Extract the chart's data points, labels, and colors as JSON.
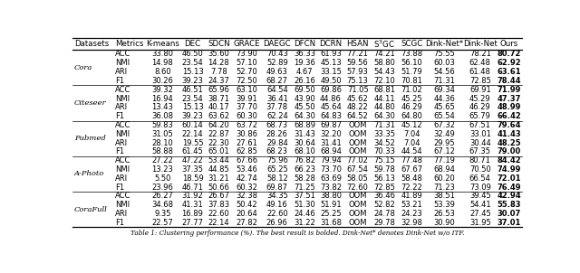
{
  "caption": "Table 1: Clustering performance (%). The best result is bolded. Dink-Net* denotes Dink-Net w/o ITF.",
  "datasets": [
    "Cora",
    "Citeseer",
    "Pubmed",
    "A-Photo",
    "CoraFull"
  ],
  "metrics": [
    "ACC",
    "NMI",
    "ARI",
    "F1"
  ],
  "col_methods": [
    "K-means",
    "DEC",
    "SDCN",
    "GRACE",
    "DAEGC",
    "DFCN",
    "DCRN",
    "HSAN",
    "S$^3$GC",
    "SCGC",
    "Dink-Net*",
    "Dink-Net",
    "Ours"
  ],
  "data": {
    "Cora": {
      "ACC": [
        "33.80",
        "46.50",
        "35.60",
        "73.90",
        "70.43",
        "36.33",
        "61.93",
        "77.21",
        "74.21",
        "73.88",
        "75.55",
        "78.21",
        "80.72"
      ],
      "NMI": [
        "14.98",
        "23.54",
        "14.28",
        "57.10",
        "52.89",
        "19.36",
        "45.13",
        "59.56",
        "58.80",
        "56.10",
        "60.03",
        "62.48",
        "62.92"
      ],
      "ARI": [
        "8.60",
        "15.13",
        "7.78",
        "52.70",
        "49.63",
        "4.67",
        "33.15",
        "57.93",
        "54.43",
        "51.79",
        "54.56",
        "61.48",
        "63.61"
      ],
      "F1": [
        "30.26",
        "39.23",
        "24.37",
        "72.50",
        "68.27",
        "26.16",
        "49.50",
        "75.13",
        "72.10",
        "70.81",
        "71.31",
        "72.85",
        "78.44"
      ]
    },
    "Citeseer": {
      "ACC": [
        "39.32",
        "46.51",
        "65.96",
        "63.10",
        "64.54",
        "69.50",
        "69.86",
        "71.05",
        "68.81",
        "71.02",
        "69.34",
        "69.91",
        "71.99"
      ],
      "NMI": [
        "16.94",
        "23.54",
        "38.71",
        "39.91",
        "36.41",
        "43.90",
        "44.86",
        "45.62",
        "44.11",
        "45.25",
        "44.36",
        "45.29",
        "47.37"
      ],
      "ARI": [
        "13.43",
        "15.13",
        "40.17",
        "37.70",
        "37.78",
        "45.50",
        "45.64",
        "48.22",
        "44.80",
        "46.29",
        "45.65",
        "46.29",
        "48.99"
      ],
      "F1": [
        "36.08",
        "39.23",
        "63.62",
        "60.30",
        "62.24",
        "64.30",
        "64.83",
        "64.52",
        "64.30",
        "64.80",
        "65.54",
        "65.79",
        "66.42"
      ]
    },
    "Pubmed": {
      "ACC": [
        "59.83",
        "60.14",
        "64.20",
        "63.72",
        "68.73",
        "68.89",
        "69.87",
        "OOM",
        "71.31",
        "45.12",
        "67.32",
        "67.51",
        "79.64"
      ],
      "NMI": [
        "31.05",
        "22.14",
        "22.87",
        "30.86",
        "28.26",
        "31.43",
        "32.20",
        "OOM",
        "33.35",
        "7.04",
        "32.49",
        "33.01",
        "41.43"
      ],
      "ARI": [
        "28.10",
        "19.55",
        "22.30",
        "27.61",
        "29.84",
        "30.64",
        "31.41",
        "OOM",
        "34.52",
        "7.04",
        "29.95",
        "30.44",
        "48.25"
      ],
      "F1": [
        "58.88",
        "61.45",
        "65.01",
        "62.85",
        "68.23",
        "68.10",
        "68.94",
        "OOM",
        "70.33",
        "44.54",
        "67.12",
        "67.35",
        "79.00"
      ]
    },
    "A-Photo": {
      "ACC": [
        "27.22",
        "47.22",
        "53.44",
        "67.66",
        "75.96",
        "76.82",
        "79.94",
        "77.02",
        "75.15",
        "77.48",
        "77.19",
        "80.71",
        "84.42"
      ],
      "NMI": [
        "13.23",
        "37.35",
        "44.85",
        "53.46",
        "65.25",
        "66.23",
        "73.70",
        "67.54",
        "59.78",
        "67.67",
        "68.94",
        "70.50",
        "74.99"
      ],
      "ARI": [
        "5.50",
        "18.59",
        "31.21",
        "42.74",
        "58.12",
        "58.28",
        "63.69",
        "58.05",
        "56.13",
        "58.48",
        "60.20",
        "66.54",
        "72.01"
      ],
      "F1": [
        "23.96",
        "46.71",
        "50.66",
        "60.32",
        "69.87",
        "71.25",
        "73.82",
        "72.60",
        "72.85",
        "72.22",
        "71.23",
        "73.09",
        "76.49"
      ]
    },
    "CoraFull": {
      "ACC": [
        "26.27",
        "31.92",
        "26.67",
        "32.38",
        "34.35",
        "37.51",
        "38.80",
        "OOM",
        "36.46",
        "41.89",
        "38.51",
        "39.45",
        "42.94"
      ],
      "NMI": [
        "34.68",
        "41.31",
        "37.83",
        "50.42",
        "49.16",
        "51.30",
        "51.91",
        "OOM",
        "52.82",
        "53.21",
        "53.39",
        "54.41",
        "55.83"
      ],
      "ARI": [
        "9.35",
        "16.89",
        "22.60",
        "20.64",
        "22.60",
        "24.46",
        "25.25",
        "OOM",
        "24.78",
        "24.23",
        "26.53",
        "27.45",
        "30.07"
      ],
      "F1": [
        "22.57",
        "27.77",
        "22.14",
        "27.82",
        "26.96",
        "31.22",
        "31.68",
        "OOM",
        "29.78",
        "32.98",
        "30.90",
        "31.95",
        "37.01"
      ]
    }
  },
  "font_size": 6.0,
  "header_font_size": 6.2,
  "caption_font_size": 5.2
}
